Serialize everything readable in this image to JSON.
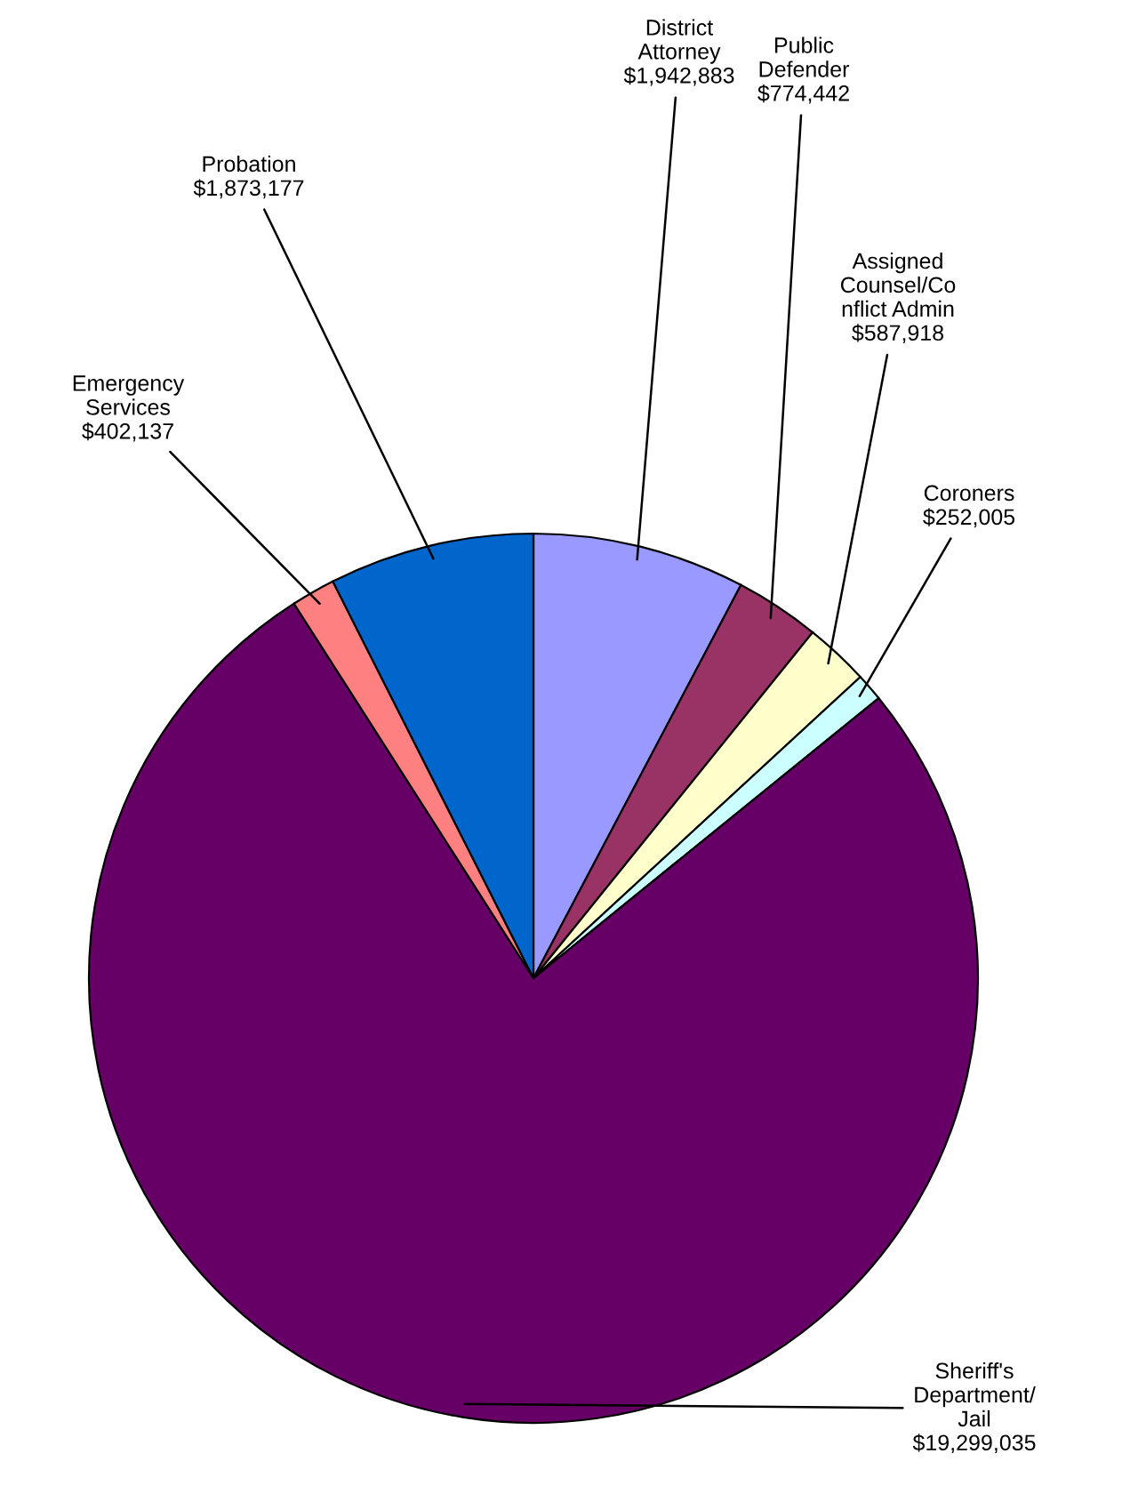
{
  "chart_data": {
    "type": "pie",
    "categories": [
      "District\nAttorney",
      "Public\nDefender",
      "Assigned\nCounsel/Co\nnflict Admin",
      "Coroners",
      "Sheriff's\nDepartment/\nJail",
      "Emergency\nServices",
      "Probation"
    ],
    "values": [
      1942883,
      774442,
      587918,
      252005,
      19299035,
      402137,
      1873177
    ],
    "value_labels": [
      "$1,942,883",
      "$774,442",
      "$587,918",
      "$252,005",
      "$19,299,035",
      "$402,137",
      "$1,873,177"
    ],
    "colors": [
      "#9999ff",
      "#993366",
      "#ffffcc",
      "#ccffff",
      "#660066",
      "#ff8080",
      "#0066cc"
    ]
  }
}
